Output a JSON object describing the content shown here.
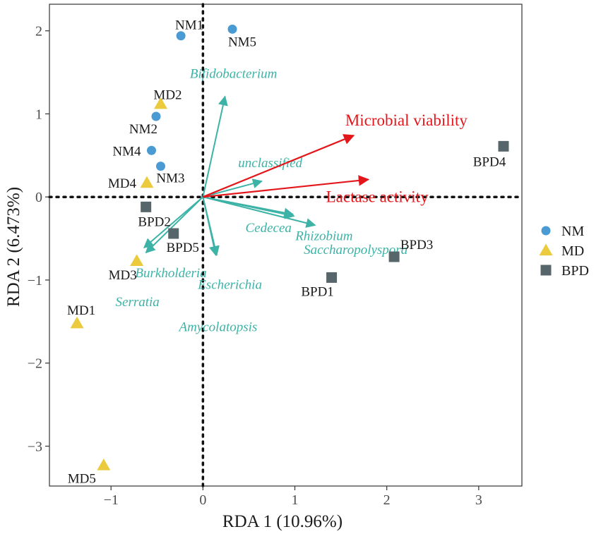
{
  "chart_data": {
    "type": "scatter",
    "title": "",
    "xlabel": "RDA 1 (10.96%)",
    "ylabel": "RDA 2 (6.473%)",
    "xlim": [
      -1.67,
      3.47
    ],
    "ylim": [
      -3.48,
      2.32
    ],
    "xticks": [
      {
        "value": -1,
        "label": "−1"
      },
      {
        "value": 0,
        "label": "0"
      },
      {
        "value": 1,
        "label": "1"
      },
      {
        "value": 2,
        "label": "2"
      },
      {
        "value": 3,
        "label": "3"
      }
    ],
    "yticks": [
      {
        "value": -3,
        "label": "−3"
      },
      {
        "value": -2,
        "label": "−2"
      },
      {
        "value": -1,
        "label": "−1"
      },
      {
        "value": 0,
        "label": "0"
      },
      {
        "value": 1,
        "label": "1"
      },
      {
        "value": 2,
        "label": "2"
      }
    ],
    "grid": false,
    "legend_position": "right",
    "groups": [
      {
        "name": "NM",
        "shape": "circle",
        "color": "#4a9bd4"
      },
      {
        "name": "MD",
        "shape": "triangle",
        "color": "#ebcb3d"
      },
      {
        "name": "BPD",
        "shape": "square",
        "color": "#57666b"
      }
    ],
    "samples": [
      {
        "label": "NM1",
        "group": "NM",
        "x": -0.24,
        "y": 1.94
      },
      {
        "label": "NM5",
        "group": "NM",
        "x": 0.32,
        "y": 2.02
      },
      {
        "label": "NM2",
        "group": "NM",
        "x": -0.51,
        "y": 0.97
      },
      {
        "label": "NM4",
        "group": "NM",
        "x": -0.56,
        "y": 0.56
      },
      {
        "label": "NM3",
        "group": "NM",
        "x": -0.46,
        "y": 0.37
      },
      {
        "label": "MD2",
        "group": "MD",
        "x": -0.46,
        "y": 1.12
      },
      {
        "label": "MD4",
        "group": "MD",
        "x": -0.61,
        "y": 0.17
      },
      {
        "label": "MD3",
        "group": "MD",
        "x": -0.72,
        "y": -0.77
      },
      {
        "label": "MD1",
        "group": "MD",
        "x": -1.37,
        "y": -1.52
      },
      {
        "label": "MD5",
        "group": "MD",
        "x": -1.08,
        "y": -3.23
      },
      {
        "label": "BPD2",
        "group": "BPD",
        "x": -0.62,
        "y": -0.12
      },
      {
        "label": "BPD5",
        "group": "BPD",
        "x": -0.32,
        "y": -0.44
      },
      {
        "label": "BPD1",
        "group": "BPD",
        "x": 1.4,
        "y": -0.97
      },
      {
        "label": "BPD3",
        "group": "BPD",
        "x": 2.08,
        "y": -0.72
      },
      {
        "label": "BPD4",
        "group": "BPD",
        "x": 3.27,
        "y": 0.61
      }
    ],
    "species_arrows": [
      {
        "label": "Bifidobacterium",
        "x": 0.24,
        "y": 1.21
      },
      {
        "label": "unclassified",
        "x": 0.64,
        "y": 0.19
      },
      {
        "label": "Cedecea",
        "x": 0.98,
        "y": -0.21
      },
      {
        "label": "Rhizobium",
        "x": 0.99,
        "y": -0.23
      },
      {
        "label": "Saccharopolyspora",
        "x": 1.22,
        "y": -0.34
      },
      {
        "label": "Burkholderia",
        "x": -0.64,
        "y": -0.61
      },
      {
        "label": "Serratia",
        "x": -0.62,
        "y": -0.67
      },
      {
        "label": "Escherichia",
        "x": 0.14,
        "y": -0.7
      },
      {
        "label": "Amycolatopsis",
        "x": 0.15,
        "y": -0.7
      }
    ],
    "env_arrows": [
      {
        "label": "Microbial viability",
        "x": 1.64,
        "y": 0.74
      },
      {
        "label": "Lactase activity",
        "x": 1.8,
        "y": 0.21
      }
    ],
    "colors": {
      "species_arrow": "#3cb3a6",
      "env_arrow": "#e3171b"
    }
  }
}
